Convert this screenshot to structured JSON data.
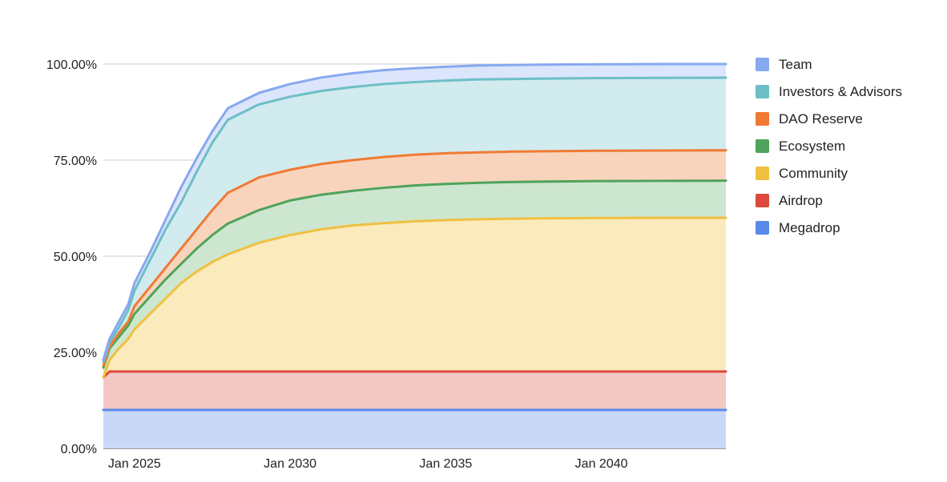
{
  "chart_data": {
    "type": "area",
    "stacked": true,
    "grid": true,
    "legend_position": "right",
    "ylim": [
      0,
      100
    ],
    "xlim": [
      2024.0,
      2044.0
    ],
    "y_ticks": [
      {
        "value": 0,
        "label": "0.00%"
      },
      {
        "value": 25,
        "label": "25.00%"
      },
      {
        "value": 50,
        "label": "50.00%"
      },
      {
        "value": 75,
        "label": "75.00%"
      },
      {
        "value": 100,
        "label": "100.00%"
      }
    ],
    "x_ticks": [
      {
        "value": 2025,
        "label": "Jan 2025"
      },
      {
        "value": 2030,
        "label": "Jan 2030"
      },
      {
        "value": 2035,
        "label": "Jan 2035"
      },
      {
        "value": 2040,
        "label": "Jan 2040"
      }
    ],
    "x": [
      2024.0,
      2024.2,
      2024.5,
      2024.8,
      2025.0,
      2025.5,
      2026.0,
      2026.5,
      2027.0,
      2027.5,
      2028.0,
      2029.0,
      2030.0,
      2031.0,
      2032.0,
      2033.0,
      2034.0,
      2035.0,
      2036.0,
      2037.0,
      2038.0,
      2040.0,
      2042.0,
      2044.0
    ],
    "series": [
      {
        "name": "Megadrop",
        "color": "#5a8ae8",
        "fill": "#c9d8f7",
        "values": [
          10,
          10,
          10,
          10,
          10,
          10,
          10,
          10,
          10,
          10,
          10,
          10,
          10,
          10,
          10,
          10,
          10,
          10,
          10,
          10,
          10,
          10,
          10,
          10
        ]
      },
      {
        "name": "Airdrop",
        "color": "#db4a3c",
        "fill": "#f3c8c4",
        "values": [
          18.5,
          20,
          20,
          20,
          20,
          20,
          20,
          20,
          20,
          20,
          20,
          20,
          20,
          20,
          20,
          20,
          20,
          20,
          20,
          20,
          20,
          20,
          20,
          20
        ]
      },
      {
        "name": "Community",
        "color": "#f0c040",
        "fill": "#fbeabb",
        "values": [
          18.5,
          23,
          26,
          28.5,
          31,
          35,
          39,
          43,
          46,
          48.5,
          50.5,
          53.5,
          55.5,
          57,
          58,
          58.6,
          59.1,
          59.4,
          59.6,
          59.75,
          59.85,
          59.95,
          60,
          60
        ]
      },
      {
        "name": "Ecosystem",
        "color": "#4fa35a",
        "fill": "#cde6cf",
        "values": [
          21,
          26,
          29,
          32,
          35,
          39.5,
          44,
          48,
          52,
          55.5,
          58.5,
          62,
          64.5,
          66,
          67,
          67.8,
          68.4,
          68.8,
          69.1,
          69.3,
          69.4,
          69.55,
          69.6,
          69.65
        ]
      },
      {
        "name": "DAO Reserve",
        "color": "#f07a32",
        "fill": "#f9d4bd",
        "values": [
          21.5,
          26.5,
          30,
          33,
          37,
          42,
          47,
          52,
          57,
          62,
          66.5,
          70.5,
          72.5,
          74,
          75,
          75.8,
          76.4,
          76.8,
          77,
          77.2,
          77.3,
          77.45,
          77.5,
          77.55
        ]
      },
      {
        "name": "Investors & Advisors",
        "color": "#6dbfc6",
        "fill": "#d2ebef",
        "values": [
          22.5,
          27.5,
          31.5,
          36,
          41,
          49,
          57,
          64,
          72,
          79.5,
          85.5,
          89.5,
          91.5,
          93,
          94,
          94.8,
          95.3,
          95.7,
          96,
          96.1,
          96.2,
          96.35,
          96.4,
          96.45
        ]
      },
      {
        "name": "Team",
        "color": "#86a9ef",
        "fill": "#dbe5fb",
        "values": [
          23,
          28.5,
          33,
          37.5,
          43,
          51,
          59.5,
          68,
          75.5,
          82.5,
          88.5,
          92.5,
          94.8,
          96.5,
          97.6,
          98.4,
          98.9,
          99.3,
          99.6,
          99.75,
          99.85,
          99.95,
          100,
          100
        ]
      }
    ]
  }
}
